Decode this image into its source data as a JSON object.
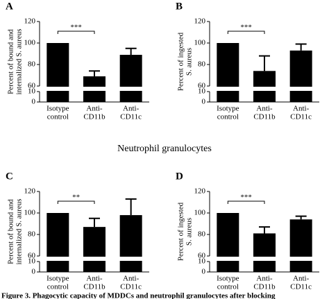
{
  "section_title": "Neutrophil granulocytes",
  "caption": "Figure 3. Phagocytic capacity of MDDCs and neutrophil granulocytes after blocking",
  "chart_data": [
    {
      "type": "bar",
      "panel": "A",
      "ylabel": [
        "Percent of bound and",
        "internalized S. aureus"
      ],
      "categories": [
        [
          "Isotype",
          "control"
        ],
        [
          "Anti-",
          "CD11b"
        ],
        [
          "Anti-",
          "CD11c"
        ]
      ],
      "values": [
        100,
        69,
        89
      ],
      "errors": [
        null,
        5,
        6
      ],
      "color": "#000000",
      "ylim": [
        0,
        120
      ],
      "axis_break": [
        10,
        60
      ],
      "yticks": [
        0,
        10,
        60,
        80,
        100,
        120
      ],
      "significance": "***"
    },
    {
      "type": "bar",
      "panel": "B",
      "ylabel": [
        "Percent of ingested",
        "S. aureus"
      ],
      "categories": [
        [
          "Isotype",
          "control"
        ],
        [
          "Anti-",
          "CD11b"
        ],
        [
          "Anti-",
          "CD11c"
        ]
      ],
      "values": [
        100,
        74,
        93
      ],
      "errors": [
        null,
        14,
        6
      ],
      "color": "#000000",
      "ylim": [
        0,
        120
      ],
      "axis_break": [
        10,
        60
      ],
      "yticks": [
        0,
        10,
        60,
        80,
        100,
        120
      ],
      "significance": "***"
    },
    {
      "type": "bar",
      "panel": "C",
      "ylabel": [
        "Percent of bound and",
        "internalized S. aureus"
      ],
      "categories": [
        [
          "Isotype",
          "control"
        ],
        [
          "Anti-",
          "CD11b"
        ],
        [
          "Anti-",
          "CD11c"
        ]
      ],
      "values": [
        100,
        87,
        98
      ],
      "errors": [
        null,
        8,
        15
      ],
      "color": "#000000",
      "ylim": [
        0,
        120
      ],
      "axis_break": [
        10,
        60
      ],
      "yticks": [
        0,
        10,
        60,
        80,
        100,
        120
      ],
      "significance": "**"
    },
    {
      "type": "bar",
      "panel": "D",
      "ylabel": [
        "Percent of ingested",
        "S. aureus"
      ],
      "categories": [
        [
          "Isotype",
          "control"
        ],
        [
          "Anti-",
          "CD11b"
        ],
        [
          "Anti-",
          "CD11c"
        ]
      ],
      "values": [
        100,
        81,
        94
      ],
      "errors": [
        null,
        6,
        3
      ],
      "color": "#000000",
      "ylim": [
        0,
        120
      ],
      "axis_break": [
        10,
        60
      ],
      "yticks": [
        0,
        10,
        60,
        80,
        100,
        120
      ],
      "significance": "***"
    }
  ]
}
